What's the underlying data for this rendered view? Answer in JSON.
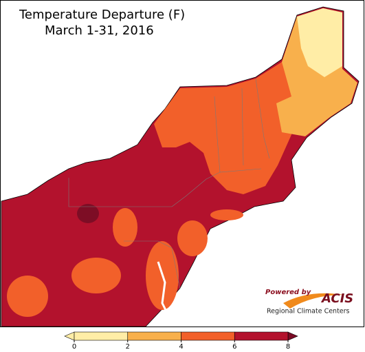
{
  "title": "Temperature Departure (F)",
  "subtitle": "March 1-31, 2016",
  "legend": {
    "ticks": [
      0,
      2,
      4,
      6,
      8
    ],
    "colors": [
      "#ffeda6",
      "#f8b04c",
      "#f2602a",
      "#b3122d"
    ]
  },
  "logo": {
    "powered": "Powered by",
    "name": "ACIS",
    "tagline": "Regional Climate Centers"
  }
}
